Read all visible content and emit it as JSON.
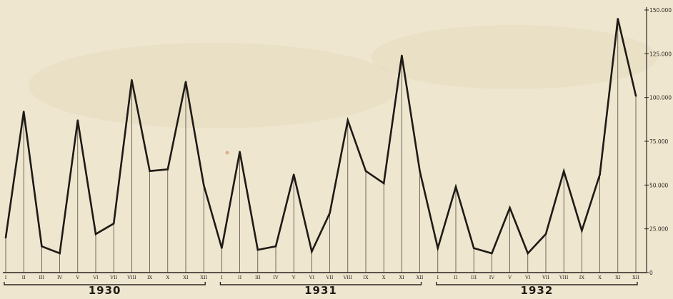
{
  "chart_data": {
    "type": "line",
    "title": "",
    "xlabel": "",
    "ylabel": "",
    "ylim": [
      0,
      150000
    ],
    "yticks": [
      0,
      25000,
      50000,
      75000,
      100000,
      125000,
      150000
    ],
    "ytick_labels": [
      "0",
      "25.000",
      "50.000",
      "75.000",
      "100.000",
      "125.000",
      "150.000"
    ],
    "grid": false,
    "legend": "none",
    "years": [
      {
        "label": "1930",
        "months": [
          "I",
          "II",
          "III",
          "IV",
          "V",
          "VI",
          "VII",
          "VIII",
          "IX",
          "X",
          "XI",
          "XII"
        ]
      },
      {
        "label": "1931",
        "months": [
          "I",
          "II",
          "III",
          "IV",
          "V",
          "VI",
          "VII",
          "VIII",
          "IX",
          "X",
          "XI",
          "XII"
        ]
      },
      {
        "label": "1932",
        "months": [
          "I",
          "II",
          "III",
          "IV",
          "V",
          "VI",
          "VII",
          "VIII",
          "IX",
          "X",
          "XI",
          "XII"
        ]
      }
    ],
    "series": [
      {
        "values": [
          20000,
          92000,
          15000,
          11000,
          87000,
          22000,
          28000,
          110000,
          58000,
          59000,
          109000,
          50000,
          14000,
          69000,
          13000,
          15000,
          56000,
          12000,
          34000,
          87000,
          58000,
          51000,
          124000,
          58000,
          14000,
          49000,
          14000,
          11000,
          37000,
          11000,
          22000,
          58000,
          24000,
          56000,
          145000,
          101000
        ]
      }
    ]
  }
}
